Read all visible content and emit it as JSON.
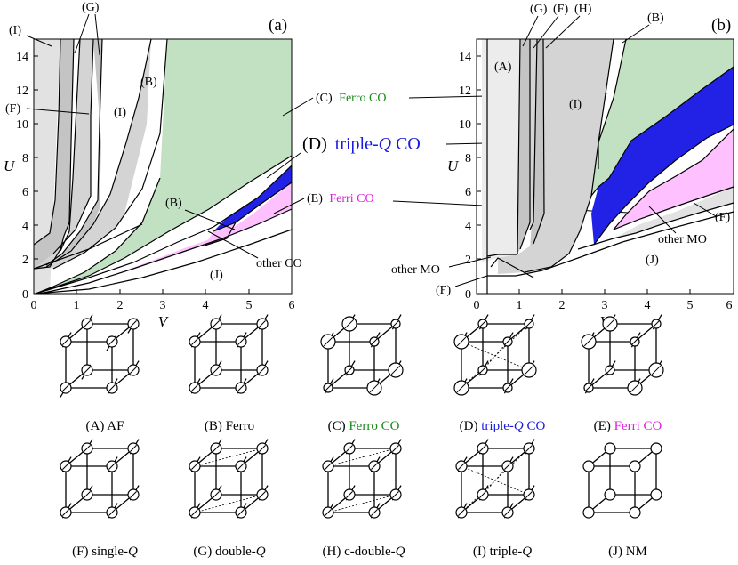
{
  "panel_a": {
    "tag": "(a)",
    "xlabel": "V",
    "ylabel": "U",
    "xticks": [
      "0",
      "1",
      "2",
      "3",
      "4",
      "5",
      "6"
    ],
    "yticks": [
      "0",
      "2",
      "4",
      "6",
      "8",
      "10",
      "12",
      "14"
    ],
    "region_labels": [
      "(I)",
      "(G)",
      "(F)",
      "(I)",
      "(B)",
      "(B)",
      "(J)"
    ],
    "callouts": {
      "c_prefix": "(C)",
      "c_text": "Ferro CO",
      "d_prefix": "(D)",
      "d_text_a": "triple-",
      "d_text_q": "Q",
      "d_text_b": " CO",
      "e_prefix": "(E)",
      "e_text": "Ferri CO",
      "other": "other CO"
    }
  },
  "panel_b": {
    "tag": "(b)",
    "xlabel": "V",
    "ylabel": "U",
    "xticks": [
      "0",
      "1",
      "2",
      "3",
      "4",
      "5",
      "6"
    ],
    "yticks": [
      "0",
      "2",
      "4",
      "6",
      "8",
      "10",
      "12",
      "14"
    ],
    "region_labels": [
      "(G)",
      "(F)",
      "(H)",
      "(B)",
      "(A)",
      "(I)",
      "(J)",
      "(F)"
    ],
    "callouts": {
      "other_mo_right": "other MO",
      "other_mo_left": "other MO",
      "f_bottom": "(F)"
    }
  },
  "legend": [
    {
      "prefix": "(A) ",
      "text": "AF",
      "q": "",
      "suffix": "",
      "color": "#000000"
    },
    {
      "prefix": "(B) ",
      "text": "Ferro",
      "q": "",
      "suffix": "",
      "color": "#000000"
    },
    {
      "prefix": "(C) ",
      "text": "Ferro CO",
      "q": "",
      "suffix": "",
      "color": "#1a8a1a"
    },
    {
      "prefix": "(D) ",
      "text": "triple-",
      "q": "Q",
      "suffix": " CO",
      "color": "#1a1ae0"
    },
    {
      "prefix": "(E) ",
      "text": "Ferri CO",
      "q": "",
      "suffix": "",
      "color": "#e020e0"
    },
    {
      "prefix": "(F) ",
      "text": "single-",
      "q": "Q",
      "suffix": "",
      "color": "#000000"
    },
    {
      "prefix": "(G) ",
      "text": "double-",
      "q": "Q",
      "suffix": "",
      "color": "#000000"
    },
    {
      "prefix": "(H) ",
      "text": "c-double-",
      "q": "Q",
      "suffix": "",
      "color": "#000000"
    },
    {
      "prefix": "(I) ",
      "text": "triple-",
      "q": "Q",
      "suffix": "",
      "color": "#000000"
    },
    {
      "prefix": "(J) ",
      "text": "NM",
      "q": "",
      "suffix": "",
      "color": "#000000"
    }
  ],
  "colors": {
    "ferro_co": "#c2e0c2",
    "triple_q_co": "#2222e6",
    "ferri_co": "#ffc0ff",
    "gray_dark": "#c4c4c4",
    "gray_mid": "#d4d4d4",
    "gray_light": "#e2e2e2",
    "label_green": "#1a8a1a",
    "label_blue": "#1a1ae0",
    "label_magenta": "#e020e0"
  }
}
